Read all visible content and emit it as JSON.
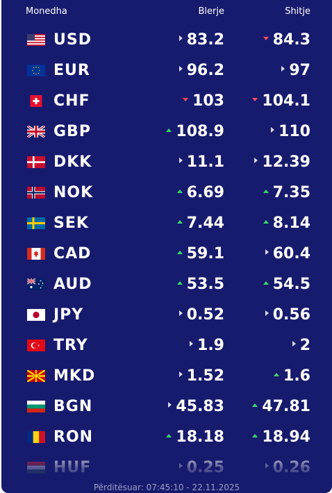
{
  "header": {
    "currency_label": "Monedha",
    "buy_label": "Blerje",
    "sell_label": "Shitje"
  },
  "colors": {
    "background": "#171b6d",
    "up": "#39d96d",
    "down": "#ff4d5e",
    "unchanged": "#d9dbeb"
  },
  "rates": [
    {
      "code": "USD",
      "flag": "us-flag-icon",
      "buy": "83.2",
      "buy_trend": "same",
      "sell": "84.3",
      "sell_trend": "down"
    },
    {
      "code": "EUR",
      "flag": "eu-flag-icon",
      "buy": "96.2",
      "buy_trend": "same",
      "sell": "97",
      "sell_trend": "same"
    },
    {
      "code": "CHF",
      "flag": "ch-flag-icon",
      "buy": "103",
      "buy_trend": "down",
      "sell": "104.1",
      "sell_trend": "down"
    },
    {
      "code": "GBP",
      "flag": "gb-flag-icon",
      "buy": "108.9",
      "buy_trend": "up",
      "sell": "110",
      "sell_trend": "same"
    },
    {
      "code": "DKK",
      "flag": "dk-flag-icon",
      "buy": "11.1",
      "buy_trend": "same",
      "sell": "12.39",
      "sell_trend": "same"
    },
    {
      "code": "NOK",
      "flag": "no-flag-icon",
      "buy": "6.69",
      "buy_trend": "up",
      "sell": "7.35",
      "sell_trend": "up"
    },
    {
      "code": "SEK",
      "flag": "se-flag-icon",
      "buy": "7.44",
      "buy_trend": "up",
      "sell": "8.14",
      "sell_trend": "up"
    },
    {
      "code": "CAD",
      "flag": "ca-flag-icon",
      "buy": "59.1",
      "buy_trend": "up",
      "sell": "60.4",
      "sell_trend": "same"
    },
    {
      "code": "AUD",
      "flag": "au-flag-icon",
      "buy": "53.5",
      "buy_trend": "up",
      "sell": "54.5",
      "sell_trend": "up"
    },
    {
      "code": "JPY",
      "flag": "jp-flag-icon",
      "buy": "0.52",
      "buy_trend": "same",
      "sell": "0.56",
      "sell_trend": "same"
    },
    {
      "code": "TRY",
      "flag": "tr-flag-icon",
      "buy": "1.9",
      "buy_trend": "same",
      "sell": "2",
      "sell_trend": "same"
    },
    {
      "code": "MKD",
      "flag": "mk-flag-icon",
      "buy": "1.52",
      "buy_trend": "same",
      "sell": "1.6",
      "sell_trend": "up"
    },
    {
      "code": "BGN",
      "flag": "bg-flag-icon",
      "buy": "45.83",
      "buy_trend": "same",
      "sell": "47.81",
      "sell_trend": "up"
    },
    {
      "code": "RON",
      "flag": "ro-flag-icon",
      "buy": "18.18",
      "buy_trend": "up",
      "sell": "18.94",
      "sell_trend": "up"
    },
    {
      "code": "HUF",
      "flag": "hu-flag-icon",
      "buy": "0.25",
      "buy_trend": "same",
      "sell": "0.26",
      "sell_trend": "same"
    }
  ],
  "footer": {
    "updated": "Përditësuar: 07:45:10 - 22.11.2025"
  }
}
